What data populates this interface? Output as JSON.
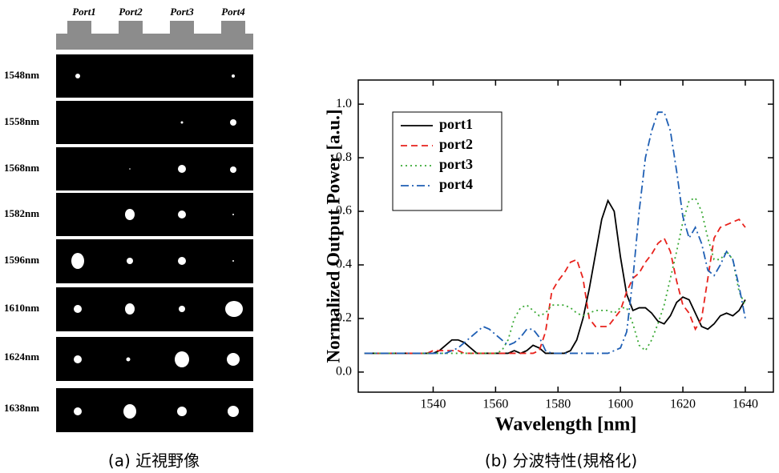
{
  "panel_a": {
    "ports": [
      "Port1",
      "Port2",
      "Port3",
      "Port4"
    ],
    "rows": [
      "1548nm",
      "1558nm",
      "1568nm",
      "1582nm",
      "1596nm",
      "1610nm",
      "1624nm",
      "1638nm"
    ],
    "caption": "(a) 近視野像"
  },
  "chart_data": {
    "type": "line",
    "caption": "(b) 分波特性(規格化)",
    "x_label": "Wavelength [nm]",
    "y_label": "Normalized Output Power [a.u.]",
    "x": [
      1518,
      1520,
      1522,
      1524,
      1526,
      1528,
      1530,
      1532,
      1534,
      1536,
      1538,
      1540,
      1542,
      1544,
      1546,
      1548,
      1550,
      1552,
      1554,
      1556,
      1558,
      1560,
      1562,
      1564,
      1566,
      1568,
      1570,
      1572,
      1574,
      1576,
      1578,
      1580,
      1582,
      1584,
      1586,
      1588,
      1590,
      1592,
      1594,
      1596,
      1598,
      1600,
      1602,
      1604,
      1606,
      1608,
      1610,
      1612,
      1614,
      1616,
      1618,
      1620,
      1622,
      1624,
      1626,
      1628,
      1630,
      1632,
      1634,
      1636,
      1638,
      1640
    ],
    "series": [
      {
        "name": "port1",
        "color": "#000000",
        "style": "solid",
        "values": [
          0.07,
          0.07,
          0.07,
          0.07,
          0.07,
          0.07,
          0.07,
          0.07,
          0.07,
          0.07,
          0.07,
          0.07,
          0.08,
          0.1,
          0.12,
          0.12,
          0.11,
          0.09,
          0.07,
          0.07,
          0.07,
          0.07,
          0.07,
          0.07,
          0.08,
          0.07,
          0.08,
          0.1,
          0.09,
          0.07,
          0.07,
          0.07,
          0.07,
          0.08,
          0.12,
          0.2,
          0.31,
          0.44,
          0.57,
          0.64,
          0.6,
          0.43,
          0.29,
          0.23,
          0.24,
          0.24,
          0.22,
          0.19,
          0.18,
          0.21,
          0.26,
          0.28,
          0.27,
          0.22,
          0.17,
          0.16,
          0.18,
          0.21,
          0.22,
          0.21,
          0.23,
          0.27
        ]
      },
      {
        "name": "port2",
        "color": "#e8221c",
        "style": "dashed",
        "values": [
          0.07,
          0.07,
          0.07,
          0.07,
          0.07,
          0.07,
          0.07,
          0.07,
          0.07,
          0.07,
          0.07,
          0.08,
          0.08,
          0.08,
          0.08,
          0.08,
          0.07,
          0.07,
          0.07,
          0.07,
          0.07,
          0.07,
          0.07,
          0.07,
          0.07,
          0.07,
          0.07,
          0.07,
          0.08,
          0.15,
          0.3,
          0.34,
          0.37,
          0.41,
          0.42,
          0.35,
          0.2,
          0.17,
          0.17,
          0.17,
          0.2,
          0.23,
          0.3,
          0.35,
          0.37,
          0.41,
          0.44,
          0.48,
          0.5,
          0.45,
          0.34,
          0.25,
          0.22,
          0.16,
          0.2,
          0.35,
          0.5,
          0.54,
          0.55,
          0.56,
          0.57,
          0.54
        ]
      },
      {
        "name": "port3",
        "color": "#3aa935",
        "style": "dotted",
        "values": [
          0.07,
          0.07,
          0.07,
          0.07,
          0.07,
          0.07,
          0.07,
          0.07,
          0.07,
          0.07,
          0.07,
          0.07,
          0.07,
          0.07,
          0.07,
          0.07,
          0.07,
          0.07,
          0.07,
          0.07,
          0.07,
          0.07,
          0.08,
          0.12,
          0.2,
          0.24,
          0.25,
          0.23,
          0.21,
          0.22,
          0.25,
          0.25,
          0.25,
          0.24,
          0.22,
          0.21,
          0.22,
          0.23,
          0.23,
          0.23,
          0.22,
          0.24,
          0.24,
          0.18,
          0.1,
          0.08,
          0.12,
          0.18,
          0.25,
          0.35,
          0.45,
          0.56,
          0.64,
          0.65,
          0.6,
          0.5,
          0.42,
          0.42,
          0.45,
          0.42,
          0.3,
          0.25
        ]
      },
      {
        "name": "port4",
        "color": "#1f5fb4",
        "style": "dashdot",
        "values": [
          0.07,
          0.07,
          0.07,
          0.07,
          0.07,
          0.07,
          0.07,
          0.07,
          0.07,
          0.07,
          0.07,
          0.07,
          0.07,
          0.07,
          0.08,
          0.09,
          0.11,
          0.13,
          0.15,
          0.17,
          0.16,
          0.14,
          0.12,
          0.1,
          0.11,
          0.13,
          0.16,
          0.16,
          0.13,
          0.08,
          0.07,
          0.07,
          0.07,
          0.07,
          0.07,
          0.07,
          0.07,
          0.07,
          0.07,
          0.07,
          0.08,
          0.09,
          0.15,
          0.35,
          0.6,
          0.8,
          0.9,
          0.97,
          0.97,
          0.9,
          0.75,
          0.58,
          0.5,
          0.54,
          0.48,
          0.38,
          0.36,
          0.4,
          0.45,
          0.42,
          0.32,
          0.2
        ]
      }
    ],
    "xlim": [
      1516,
      1649
    ],
    "ylim": [
      -0.075,
      1.09
    ],
    "xticks": [
      1540,
      1560,
      1580,
      1600,
      1620,
      1640
    ],
    "yticks": [
      {
        "value": 0,
        "label": "0.0"
      },
      0.2,
      0.4,
      0.6,
      0.8,
      {
        "value": 1,
        "label": "1.0"
      }
    ],
    "legend": "top-left"
  }
}
